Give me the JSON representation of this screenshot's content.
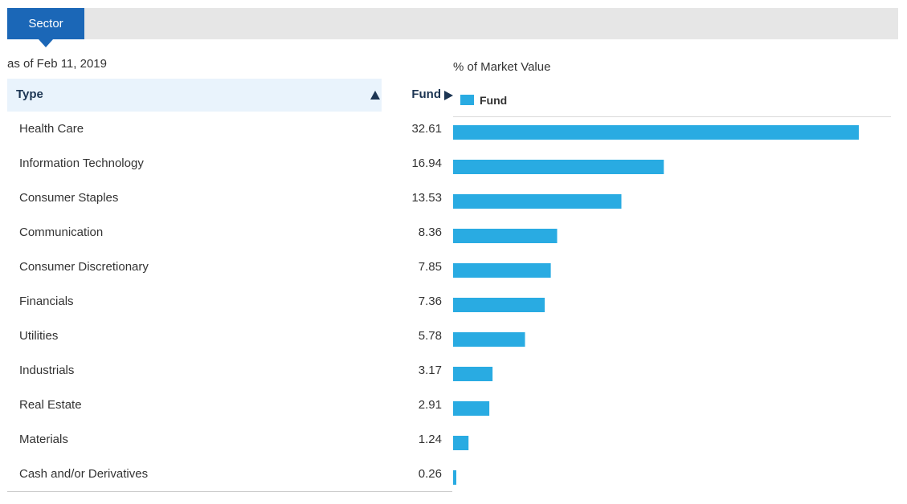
{
  "tabs": [
    {
      "label": "Sector",
      "active": true
    }
  ],
  "as_of": "as of Feb 11, 2019",
  "table": {
    "type_header": "Type",
    "fund_header": "Fund"
  },
  "colors": {
    "accent": "#1b67b7",
    "bar": "#29abe2",
    "header_bg": "#e9f3fc",
    "header_text": "#1c3553"
  },
  "icons": {
    "sort": "sort-ascending-triangle-icon",
    "fund_column": "play-right-triangle-icon"
  },
  "chart_data": {
    "type": "bar",
    "orientation": "horizontal",
    "title": "% of Market Value",
    "legend_position": "top-left",
    "grid": false,
    "categories": [
      "Health Care",
      "Information Technology",
      "Consumer Staples",
      "Communication",
      "Consumer Discretionary",
      "Financials",
      "Utilities",
      "Industrials",
      "Real Estate",
      "Materials",
      "Cash and/or Derivatives"
    ],
    "value_labels": [
      "32.61",
      "16.94",
      "13.53",
      "8.36",
      "7.85",
      "7.36",
      "5.78",
      "3.17",
      "2.91",
      "1.24",
      "0.26"
    ],
    "series": [
      {
        "name": "Fund",
        "color": "#29abe2",
        "values": [
          32.61,
          16.94,
          13.53,
          8.36,
          7.85,
          7.36,
          5.78,
          3.17,
          2.91,
          1.24,
          0.26
        ]
      }
    ],
    "xlim": [
      0,
      32.61
    ]
  }
}
